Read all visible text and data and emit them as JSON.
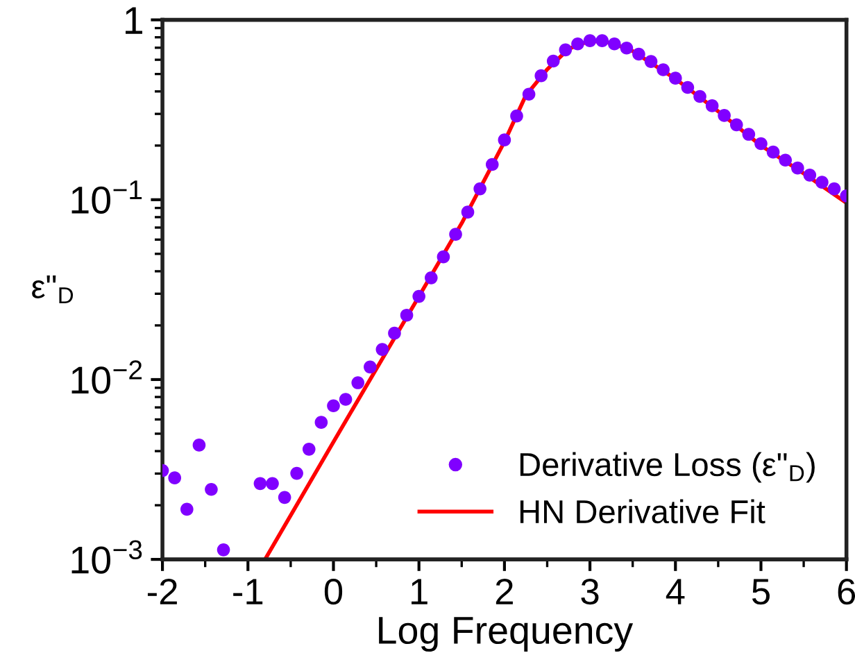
{
  "chart_data": {
    "type": "scatter",
    "xlabel": "Log Frequency",
    "ylabel": "ε\"$_{D}$",
    "log": "y",
    "xlim": [
      -2,
      6
    ],
    "ylim": [
      0.001,
      1
    ],
    "xticks": [
      -2,
      -1,
      0,
      1,
      2,
      3,
      4,
      5,
      6
    ],
    "yticks": [
      {
        "value": 0.001,
        "label": "10$^{−3}$"
      },
      {
        "value": 0.01,
        "label": "10$^{−2}$"
      },
      {
        "value": 0.1,
        "label": "10$^{−1}$"
      },
      1
    ],
    "grid": false,
    "legend": "bottom right",
    "marker": "circle",
    "series": [
      {
        "name": "Derivative Loss (ε\"$_{D}$)",
        "color": "#8000ff",
        "x": [
          -2.0,
          -1.857,
          -1.714,
          -1.571,
          -1.429,
          -1.286,
          -0.857,
          -0.714,
          -0.571,
          -0.429,
          -0.286,
          -0.143,
          0.0,
          0.143,
          0.286,
          0.429,
          0.571,
          0.714,
          0.857,
          1.0,
          1.143,
          1.286,
          1.429,
          1.571,
          1.714,
          1.857,
          2.0,
          2.143,
          2.286,
          2.429,
          2.571,
          2.714,
          2.857,
          3.0,
          3.143,
          3.286,
          3.429,
          3.571,
          3.714,
          3.857,
          4.0,
          4.143,
          4.286,
          4.429,
          4.571,
          4.714,
          4.857,
          5.0,
          5.143,
          5.286,
          5.429,
          5.571,
          5.714,
          5.857,
          6.0
        ],
        "values": [
          0.00312,
          0.00284,
          0.0019,
          0.00432,
          0.00245,
          0.00113,
          0.00264,
          0.00264,
          0.00221,
          0.00301,
          0.0041,
          0.00578,
          0.00715,
          0.00776,
          0.0096,
          0.01175,
          0.0147,
          0.0181,
          0.0228,
          0.029,
          0.0368,
          0.0481,
          0.0642,
          0.0853,
          0.115,
          0.157,
          0.215,
          0.292,
          0.386,
          0.489,
          0.59,
          0.681,
          0.735,
          0.766,
          0.766,
          0.735,
          0.697,
          0.645,
          0.587,
          0.528,
          0.474,
          0.421,
          0.375,
          0.333,
          0.294,
          0.261,
          0.231,
          0.205,
          0.184,
          0.166,
          0.15,
          0.137,
          0.125,
          0.115,
          0.105
        ]
      },
      {
        "name": "HN Derivative Fit",
        "type": "line",
        "color": "#ff0000",
        "line_style": "solid",
        "marker": "none",
        "x": [
          -0.8,
          0,
          1,
          1.5,
          2,
          2.25,
          2.5,
          2.75,
          3,
          3.25,
          3.5,
          4,
          4.5,
          5,
          5.5,
          6
        ],
        "values": [
          0.001,
          0.0045,
          0.029,
          0.074,
          0.21,
          0.38,
          0.53,
          0.69,
          0.765,
          0.745,
          0.67,
          0.47,
          0.31,
          0.2,
          0.14,
          0.096
        ]
      }
    ]
  }
}
